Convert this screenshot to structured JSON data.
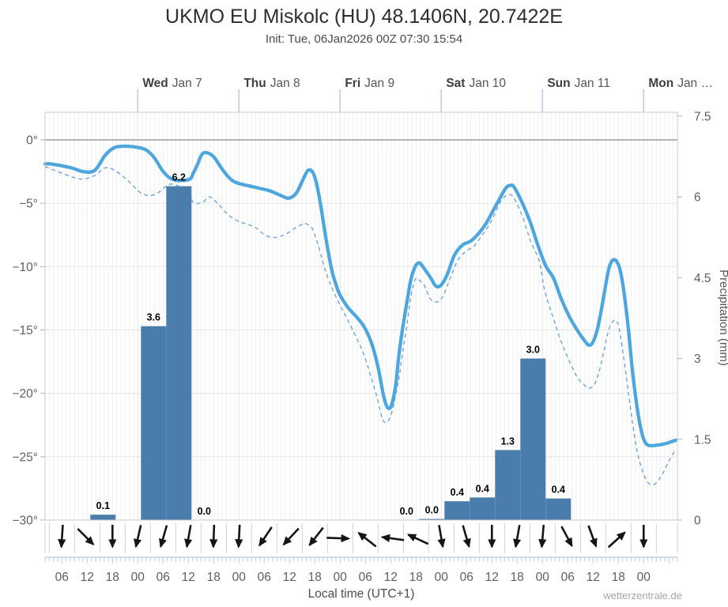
{
  "header": {
    "title": "UKMO EU Miskolc (HU) 48.1406N, 20.7422E",
    "subtitle": "Init: Tue, 06Jan2026 00Z 07:30 15:54"
  },
  "footer": {
    "xlabel": "Local time (UTC+1)",
    "watermark": "wetterzentrale.de"
  },
  "colors": {
    "temp_line": "#4ea6de",
    "dewpoint_line": "#6fa4d9",
    "bar_fill": "#4a7dab",
    "zero_line": "#9e9e9e",
    "grid_v": "#ececec",
    "grid_v_day": "#dedede",
    "grid_h": "#e6e6e6",
    "border": "#c9c9c9",
    "day_tick": "#b7cbe4",
    "bottom_axis": "#b7c9e0",
    "wind_separator": "#d2d2d2",
    "arrow": "#151515",
    "axis_text": "#5f5f5f",
    "day_text_bold": "#3f3f3f",
    "day_text": "#575757",
    "bar_label": "#000000"
  },
  "chart_data": {
    "type": "line+bar",
    "title": "UKMO EU Miskolc (HU) 48.1406N, 20.7422E",
    "x_axis": {
      "unit": "hours from Tue 06 Jan 00:00 local",
      "range": [
        2,
        152
      ],
      "hour_ticks": [
        {
          "hour": 6,
          "label": "06"
        },
        {
          "hour": 12,
          "label": "12"
        },
        {
          "hour": 18,
          "label": "18"
        },
        {
          "hour": 24,
          "label": "00"
        },
        {
          "hour": 30,
          "label": "06"
        },
        {
          "hour": 36,
          "label": "12"
        },
        {
          "hour": 42,
          "label": "18"
        },
        {
          "hour": 48,
          "label": "00"
        },
        {
          "hour": 54,
          "label": "06"
        },
        {
          "hour": 60,
          "label": "12"
        },
        {
          "hour": 66,
          "label": "18"
        },
        {
          "hour": 72,
          "label": "00"
        },
        {
          "hour": 78,
          "label": "06"
        },
        {
          "hour": 84,
          "label": "12"
        },
        {
          "hour": 90,
          "label": "18"
        },
        {
          "hour": 96,
          "label": "00"
        },
        {
          "hour": 102,
          "label": "06"
        },
        {
          "hour": 108,
          "label": "12"
        },
        {
          "hour": 114,
          "label": "18"
        },
        {
          "hour": 120,
          "label": "00"
        },
        {
          "hour": 126,
          "label": "06"
        },
        {
          "hour": 132,
          "label": "12"
        },
        {
          "hour": 138,
          "label": "18"
        },
        {
          "hour": 144,
          "label": "00"
        }
      ],
      "day_ticks": [
        {
          "hour": 24,
          "day": "Wed",
          "date": "Jan 7"
        },
        {
          "hour": 48,
          "day": "Thu",
          "date": "Jan 8"
        },
        {
          "hour": 72,
          "day": "Fri",
          "date": "Jan 9"
        },
        {
          "hour": 96,
          "day": "Sat",
          "date": "Jan 10"
        },
        {
          "hour": 120,
          "day": "Sun",
          "date": "Jan 11"
        },
        {
          "hour": 144,
          "day": "Mon",
          "date": "Jan …"
        }
      ]
    },
    "temp_axis": {
      "side": "left",
      "ticks": [
        {
          "value": 0,
          "label": "0°"
        },
        {
          "value": -5,
          "label": "−5°"
        },
        {
          "value": -10,
          "label": "−10°"
        },
        {
          "value": -15,
          "label": "−15°"
        },
        {
          "value": -20,
          "label": "−20°"
        },
        {
          "value": -25,
          "label": "−25°"
        },
        {
          "value": -30,
          "label": "−30°"
        }
      ],
      "top_value": 2.2,
      "bottom_value": -30
    },
    "precip_axis": {
      "side": "right",
      "label": "Precipitation (mm)",
      "ticks": [
        {
          "value": 0,
          "label": "0"
        },
        {
          "value": 1.5,
          "label": "1.5"
        },
        {
          "value": 3,
          "label": "3"
        },
        {
          "value": 4.5,
          "label": "4.5"
        },
        {
          "value": 6,
          "label": "6"
        },
        {
          "value": 7.5,
          "label": "7.5"
        }
      ],
      "range": [
        0,
        7.5
      ]
    },
    "series": [
      {
        "name": "2m temperature (°C)",
        "style": "solid",
        "points": [
          [
            2,
            -1.9
          ],
          [
            3.5,
            -1.9
          ],
          [
            8.2,
            -2.2
          ],
          [
            11,
            -2.5
          ],
          [
            13.8,
            -2.4
          ],
          [
            16.3,
            -1.2
          ],
          [
            18.5,
            -0.6
          ],
          [
            21.3,
            -0.5
          ],
          [
            24,
            -0.6
          ],
          [
            26,
            -0.8
          ],
          [
            27.9,
            -1.4
          ],
          [
            29.8,
            -2.4
          ],
          [
            31.6,
            -3.0
          ],
          [
            33.5,
            -3.2
          ],
          [
            36.3,
            -3.1
          ],
          [
            37.2,
            -2.6
          ],
          [
            38.2,
            -1.9
          ],
          [
            39.1,
            -1.2
          ],
          [
            40.1,
            -1.0
          ],
          [
            41.9,
            -1.3
          ],
          [
            43.8,
            -2.2
          ],
          [
            45.7,
            -3.0
          ],
          [
            47.6,
            -3.4
          ],
          [
            51.3,
            -3.7
          ],
          [
            55.1,
            -4.0
          ],
          [
            58,
            -4.4
          ],
          [
            59.8,
            -4.6
          ],
          [
            61.6,
            -4.2
          ],
          [
            63.5,
            -2.9
          ],
          [
            64.4,
            -2.4
          ],
          [
            65.4,
            -2.5
          ],
          [
            66.3,
            -3.3
          ],
          [
            67.3,
            -5.0
          ],
          [
            68.2,
            -6.9
          ],
          [
            69.1,
            -8.7
          ],
          [
            70.1,
            -10.4
          ],
          [
            71,
            -11.4
          ],
          [
            71.9,
            -12.2
          ],
          [
            73.8,
            -13.2
          ],
          [
            75.7,
            -13.9
          ],
          [
            77.6,
            -14.7
          ],
          [
            79.4,
            -16.0
          ],
          [
            80.9,
            -17.8
          ],
          [
            82.3,
            -20.2
          ],
          [
            83.2,
            -21.1
          ],
          [
            84.1,
            -21.0
          ],
          [
            85.1,
            -19.5
          ],
          [
            86,
            -16.8
          ],
          [
            86.9,
            -14.7
          ],
          [
            87.9,
            -12.7
          ],
          [
            88.8,
            -11.0
          ],
          [
            89.8,
            -10.0
          ],
          [
            90.7,
            -9.7
          ],
          [
            91.6,
            -10.0
          ],
          [
            93.5,
            -10.9
          ],
          [
            94.6,
            -11.5
          ],
          [
            95.8,
            -11.5
          ],
          [
            97.3,
            -10.7
          ],
          [
            99.1,
            -9.1
          ],
          [
            101,
            -8.3
          ],
          [
            102.9,
            -8.0
          ],
          [
            104.8,
            -7.4
          ],
          [
            106.6,
            -6.6
          ],
          [
            109.4,
            -4.9
          ],
          [
            111.3,
            -3.8
          ],
          [
            112.3,
            -3.6
          ],
          [
            113.2,
            -3.7
          ],
          [
            115.1,
            -4.9
          ],
          [
            117,
            -6.4
          ],
          [
            118.8,
            -8.2
          ],
          [
            120.7,
            -9.9
          ],
          [
            122.6,
            -10.9
          ],
          [
            124.4,
            -12.5
          ],
          [
            126.3,
            -13.9
          ],
          [
            128.2,
            -15.0
          ],
          [
            130.1,
            -15.9
          ],
          [
            131,
            -16.2
          ],
          [
            131.9,
            -16.0
          ],
          [
            132.9,
            -15.1
          ],
          [
            133.8,
            -13.7
          ],
          [
            134.8,
            -11.8
          ],
          [
            135.7,
            -10.2
          ],
          [
            136.6,
            -9.5
          ],
          [
            137.6,
            -9.6
          ],
          [
            138.5,
            -10.4
          ],
          [
            139.4,
            -12.2
          ],
          [
            140.4,
            -15.0
          ],
          [
            141.3,
            -18.1
          ],
          [
            142.3,
            -20.8
          ],
          [
            143.2,
            -22.6
          ],
          [
            144.1,
            -23.7
          ],
          [
            145.1,
            -24.1
          ],
          [
            146.9,
            -24.1
          ],
          [
            148.8,
            -24.0
          ],
          [
            150.7,
            -23.8
          ],
          [
            151.6,
            -23.7
          ]
        ]
      },
      {
        "name": "dewpoint (°C)",
        "style": "dashed",
        "points": [
          [
            2,
            -2.1
          ],
          [
            3.5,
            -2.3
          ],
          [
            8.2,
            -2.9
          ],
          [
            11,
            -3.1
          ],
          [
            13.8,
            -2.8
          ],
          [
            16.3,
            -2.2
          ],
          [
            18.5,
            -2.4
          ],
          [
            21.3,
            -3.1
          ],
          [
            24,
            -4.0
          ],
          [
            25.5,
            -4.3
          ],
          [
            26.8,
            -4.4
          ],
          [
            28.7,
            -4.2
          ],
          [
            31.6,
            -3.5
          ],
          [
            34.4,
            -3.8
          ],
          [
            36.3,
            -4.5
          ],
          [
            37.5,
            -5.0
          ],
          [
            39.5,
            -4.9
          ],
          [
            41,
            -4.5
          ],
          [
            42.9,
            -5.0
          ],
          [
            44.8,
            -5.7
          ],
          [
            46.6,
            -6.2
          ],
          [
            48.5,
            -6.5
          ],
          [
            50.4,
            -6.7
          ],
          [
            52.3,
            -7.0
          ],
          [
            54.1,
            -7.5
          ],
          [
            56,
            -7.7
          ],
          [
            57.9,
            -7.6
          ],
          [
            59.8,
            -7.3
          ],
          [
            61.6,
            -6.9
          ],
          [
            63.5,
            -6.6
          ],
          [
            64.4,
            -6.7
          ],
          [
            65.4,
            -7.0
          ],
          [
            66.3,
            -7.8
          ],
          [
            67.3,
            -8.9
          ],
          [
            68.2,
            -10.0
          ],
          [
            69.1,
            -10.9
          ],
          [
            70.1,
            -11.7
          ],
          [
            71.9,
            -13.0
          ],
          [
            73.8,
            -14.2
          ],
          [
            75.7,
            -15.5
          ],
          [
            77.6,
            -16.9
          ],
          [
            79.4,
            -18.8
          ],
          [
            80.9,
            -20.5
          ],
          [
            81.8,
            -21.8
          ],
          [
            82.6,
            -22.3
          ],
          [
            83.5,
            -22.1
          ],
          [
            84.4,
            -21.3
          ],
          [
            85.9,
            -18.9
          ],
          [
            86.8,
            -16.8
          ],
          [
            87.8,
            -14.7
          ],
          [
            88.7,
            -12.5
          ],
          [
            89.6,
            -11.2
          ],
          [
            90.2,
            -10.9
          ],
          [
            90.9,
            -11.1
          ],
          [
            92,
            -11.5
          ],
          [
            93.3,
            -12.5
          ],
          [
            94.6,
            -12.8
          ],
          [
            96.1,
            -12.5
          ],
          [
            98,
            -11.0
          ],
          [
            99.9,
            -9.5
          ],
          [
            101.8,
            -8.8
          ],
          [
            103.7,
            -8.4
          ],
          [
            105.5,
            -7.6
          ],
          [
            107,
            -6.9
          ],
          [
            108.3,
            -6.1
          ],
          [
            110.2,
            -4.8
          ],
          [
            112.1,
            -4.3
          ],
          [
            113.4,
            -4.7
          ],
          [
            115.3,
            -6.1
          ],
          [
            117.2,
            -8.0
          ],
          [
            119.1,
            -9.4
          ],
          [
            119.8,
            -10.5
          ],
          [
            120.6,
            -12.0
          ],
          [
            122.6,
            -14.1
          ],
          [
            124.4,
            -15.9
          ],
          [
            126.3,
            -17.4
          ],
          [
            128.2,
            -18.7
          ],
          [
            130.1,
            -19.4
          ],
          [
            131,
            -19.6
          ],
          [
            132.3,
            -19.3
          ],
          [
            133.4,
            -18.3
          ],
          [
            134.6,
            -16.6
          ],
          [
            135.7,
            -15.0
          ],
          [
            136.8,
            -14.3
          ],
          [
            137.9,
            -14.5
          ],
          [
            139,
            -16.6
          ],
          [
            140.2,
            -19.5
          ],
          [
            141.3,
            -22.2
          ],
          [
            142.4,
            -24.5
          ],
          [
            143.5,
            -25.9
          ],
          [
            144.7,
            -26.9
          ],
          [
            145.8,
            -27.2
          ],
          [
            146.9,
            -27.1
          ],
          [
            148.4,
            -26.4
          ],
          [
            149.9,
            -25.4
          ],
          [
            151.6,
            -24.4
          ]
        ]
      }
    ],
    "precip_bars": [
      {
        "start_hour": 12,
        "hours": 6,
        "value": 0.1,
        "label": "0.1"
      },
      {
        "start_hour": 24,
        "hours": 6,
        "value": 3.6,
        "label": "3.6"
      },
      {
        "start_hour": 30,
        "hours": 6,
        "value": 6.2,
        "label": "6.2"
      },
      {
        "start_hour": 36,
        "hours": 6,
        "value": 0,
        "label": "0.0"
      },
      {
        "start_hour": 84,
        "hours": 6,
        "value": 0,
        "label": "0.0"
      },
      {
        "start_hour": 90,
        "hours": 6,
        "value": 0.02,
        "label": "0.0"
      },
      {
        "start_hour": 96,
        "hours": 6,
        "value": 0.35,
        "label": "0.4"
      },
      {
        "start_hour": 102,
        "hours": 6,
        "value": 0.42,
        "label": "0.4"
      },
      {
        "start_hour": 108,
        "hours": 6,
        "value": 1.3,
        "label": "1.3"
      },
      {
        "start_hour": 114,
        "hours": 6,
        "value": 3.0,
        "label": "3.0"
      },
      {
        "start_hour": 120,
        "hours": 6,
        "value": 0.4,
        "label": "0.4"
      }
    ],
    "wind_arrows": [
      {
        "hour": 6,
        "angle_deg": 94
      },
      {
        "hour": 12,
        "angle_deg": 45
      },
      {
        "hour": 18,
        "angle_deg": 90
      },
      {
        "hour": 24,
        "angle_deg": 103
      },
      {
        "hour": 30,
        "angle_deg": 106
      },
      {
        "hour": 36,
        "angle_deg": 100
      },
      {
        "hour": 42,
        "angle_deg": 92
      },
      {
        "hour": 48,
        "angle_deg": 93
      },
      {
        "hour": 54,
        "angle_deg": 124
      },
      {
        "hour": 60,
        "angle_deg": 133
      },
      {
        "hour": 66,
        "angle_deg": 128
      },
      {
        "hour": 72,
        "angle_deg": 2
      },
      {
        "hour": 78,
        "angle_deg": 218
      },
      {
        "hour": 84,
        "angle_deg": 188
      },
      {
        "hour": 90,
        "angle_deg": 205
      },
      {
        "hour": 96,
        "angle_deg": 80
      },
      {
        "hour": 102,
        "angle_deg": 74
      },
      {
        "hour": 108,
        "angle_deg": 90
      },
      {
        "hour": 114,
        "angle_deg": 100
      },
      {
        "hour": 120,
        "angle_deg": 95
      },
      {
        "hour": 126,
        "angle_deg": 62
      },
      {
        "hour": 132,
        "angle_deg": 70
      },
      {
        "hour": 138,
        "angle_deg": 318
      },
      {
        "hour": 144,
        "angle_deg": 90
      }
    ]
  }
}
